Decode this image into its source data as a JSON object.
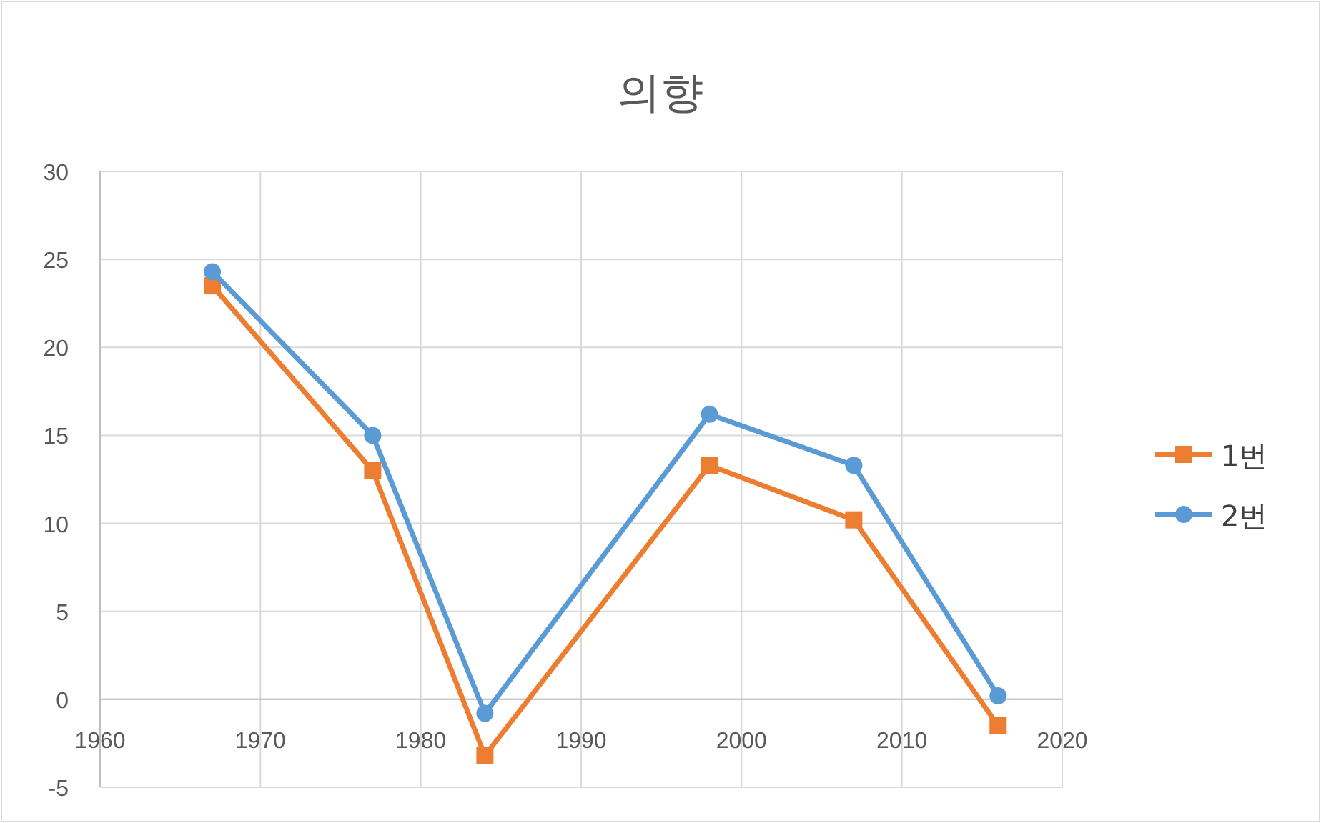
{
  "chart_data": {
    "type": "line",
    "title": "의향",
    "xlim": [
      1960,
      2020
    ],
    "xticks": [
      1960,
      1970,
      1980,
      1990,
      2000,
      2010,
      2020
    ],
    "ylim": [
      -5,
      30
    ],
    "yticks": [
      -5,
      0,
      5,
      10,
      15,
      20,
      25,
      30
    ],
    "grid": true,
    "legend": "right",
    "series": [
      {
        "name": "1번",
        "color": "#ed7d31",
        "marker": "square",
        "x": [
          1967,
          1977,
          1984,
          1998,
          2007,
          2016
        ],
        "values": [
          23.5,
          13,
          -3.2,
          13.3,
          10.2,
          -1.5
        ]
      },
      {
        "name": "2번",
        "color": "#5b9bd5",
        "marker": "circle",
        "x": [
          1967,
          1977,
          1984,
          1998,
          2007,
          2016
        ],
        "values": [
          24.3,
          15,
          -0.8,
          16.2,
          13.3,
          0.2
        ]
      }
    ]
  }
}
